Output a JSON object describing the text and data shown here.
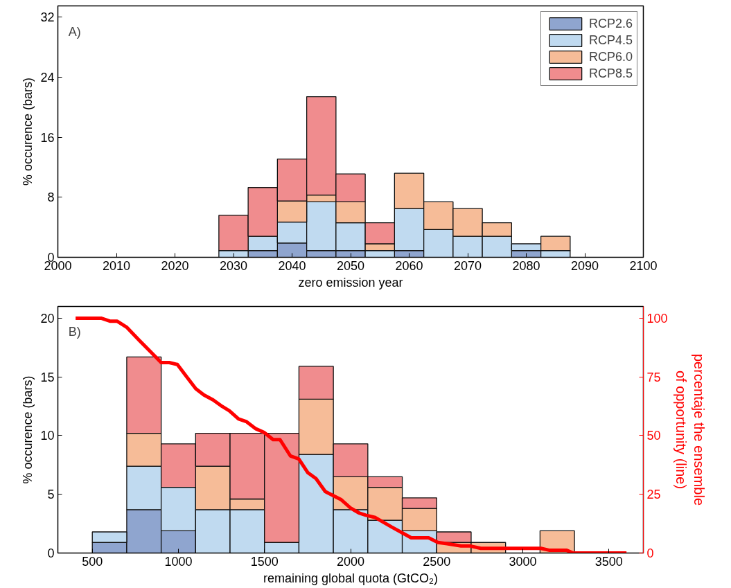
{
  "chart_data": [
    {
      "type": "bar",
      "stacked": true,
      "ylabel": "% occurence (bars)",
      "xlabel": "zero emission year",
      "annotations": [
        "A)"
      ],
      "x": [
        2030,
        2035,
        2040,
        2045,
        2050,
        2055,
        2060,
        2065,
        2070,
        2075,
        2080,
        2085
      ],
      "xlim": [
        2000,
        2100
      ],
      "xticks": [
        2000,
        2010,
        2020,
        2030,
        2040,
        2050,
        2060,
        2070,
        2080,
        2090,
        2100
      ],
      "ylim": [
        0,
        33.5
      ],
      "yticks": [
        0,
        8,
        16,
        24,
        32
      ],
      "legend": "top right",
      "series": [
        {
          "name": "RCP2.6",
          "color": "#8fa5cf",
          "values": [
            0,
            0.9,
            1.9,
            0.9,
            0.9,
            0,
            0.9,
            0,
            0,
            0,
            0.9,
            0
          ]
        },
        {
          "name": "RCP4.5",
          "color": "#c0daf0",
          "values": [
            0.9,
            1.9,
            2.8,
            6.5,
            3.7,
            0.9,
            5.6,
            3.7,
            2.8,
            2.8,
            0.9,
            0.9
          ]
        },
        {
          "name": "RCP6.0",
          "color": "#f6bc98",
          "values": [
            0,
            0,
            2.8,
            0.9,
            2.8,
            0.9,
            4.7,
            3.7,
            3.7,
            1.8,
            0,
            1.9
          ]
        },
        {
          "name": "RCP8.5",
          "color": "#f08c8e",
          "values": [
            4.7,
            6.5,
            5.6,
            13.1,
            3.7,
            2.8,
            0,
            0,
            0,
            0,
            0,
            0
          ]
        }
      ]
    },
    {
      "type": "bar",
      "stacked": true,
      "ylabel": "% occurence (bars)",
      "xlabel": "remaining global quota (GtCO₂)",
      "y2label": "percentaje the ensemble of opportunity (line)",
      "annotations": [
        "B)"
      ],
      "x": [
        600,
        800,
        1000,
        1200,
        1400,
        1600,
        1800,
        2000,
        2200,
        2400,
        2600,
        2800,
        3000,
        3200
      ],
      "xlim": [
        300,
        3700
      ],
      "xticks": [
        500,
        1000,
        1500,
        2000,
        2500,
        3000,
        3500
      ],
      "ylim": [
        0,
        21
      ],
      "yticks": [
        0,
        5,
        10,
        15,
        20
      ],
      "y2lim": [
        0,
        105
      ],
      "y2ticks": [
        0,
        25,
        50,
        75,
        100
      ],
      "series": [
        {
          "color": "#8fa5cf",
          "values": [
            0.9,
            3.7,
            1.9,
            0,
            0,
            0,
            0,
            0,
            0,
            0,
            0,
            0,
            0,
            0
          ]
        },
        {
          "color": "#c0daf0",
          "values": [
            0.9,
            3.7,
            3.7,
            3.7,
            3.7,
            0.9,
            8.4,
            3.7,
            2.8,
            1.9,
            0,
            0,
            0,
            0
          ]
        },
        {
          "color": "#f6bc98",
          "values": [
            0,
            2.8,
            0,
            3.7,
            0.9,
            0,
            4.7,
            2.8,
            2.8,
            1.9,
            0.9,
            0.9,
            0,
            1.9
          ]
        },
        {
          "color": "#f08c8e",
          "values": [
            0,
            6.5,
            3.7,
            2.8,
            5.6,
            9.3,
            2.8,
            2.8,
            0.9,
            0.9,
            0.9,
            0,
            0,
            0
          ]
        },
        {
          "type": "line",
          "axis": "y2",
          "color": "#ff0000",
          "x": [
            403,
            551,
            605,
            645,
            699,
            772,
            840,
            900,
            947,
            994,
            1054,
            1101,
            1148,
            1202,
            1255,
            1296,
            1349,
            1396,
            1450,
            1497,
            1550,
            1590,
            1651,
            1699,
            1752,
            1799,
            1853,
            1906,
            1946,
            2001,
            2048,
            2088,
            2144,
            2238,
            2352,
            2453,
            2507,
            2560,
            2641,
            2695,
            2756,
            3105,
            3152,
            3253,
            3293,
            3602
          ],
          "values": [
            100,
            100,
            98.7,
            98.7,
            96.2,
            90.6,
            85.6,
            81.1,
            81.1,
            80.3,
            74.5,
            70,
            67.3,
            65.2,
            62.4,
            60.6,
            57.1,
            55.9,
            52.9,
            51.4,
            48.3,
            48.3,
            41.3,
            40.1,
            34.2,
            31.7,
            26.2,
            24.2,
            22.7,
            19.1,
            17.1,
            16.1,
            15.1,
            11.1,
            6.5,
            6.5,
            4.5,
            4.0,
            3.0,
            3.0,
            2.0,
            2.0,
            1.2,
            1.2,
            0,
            0
          ]
        }
      ]
    }
  ]
}
